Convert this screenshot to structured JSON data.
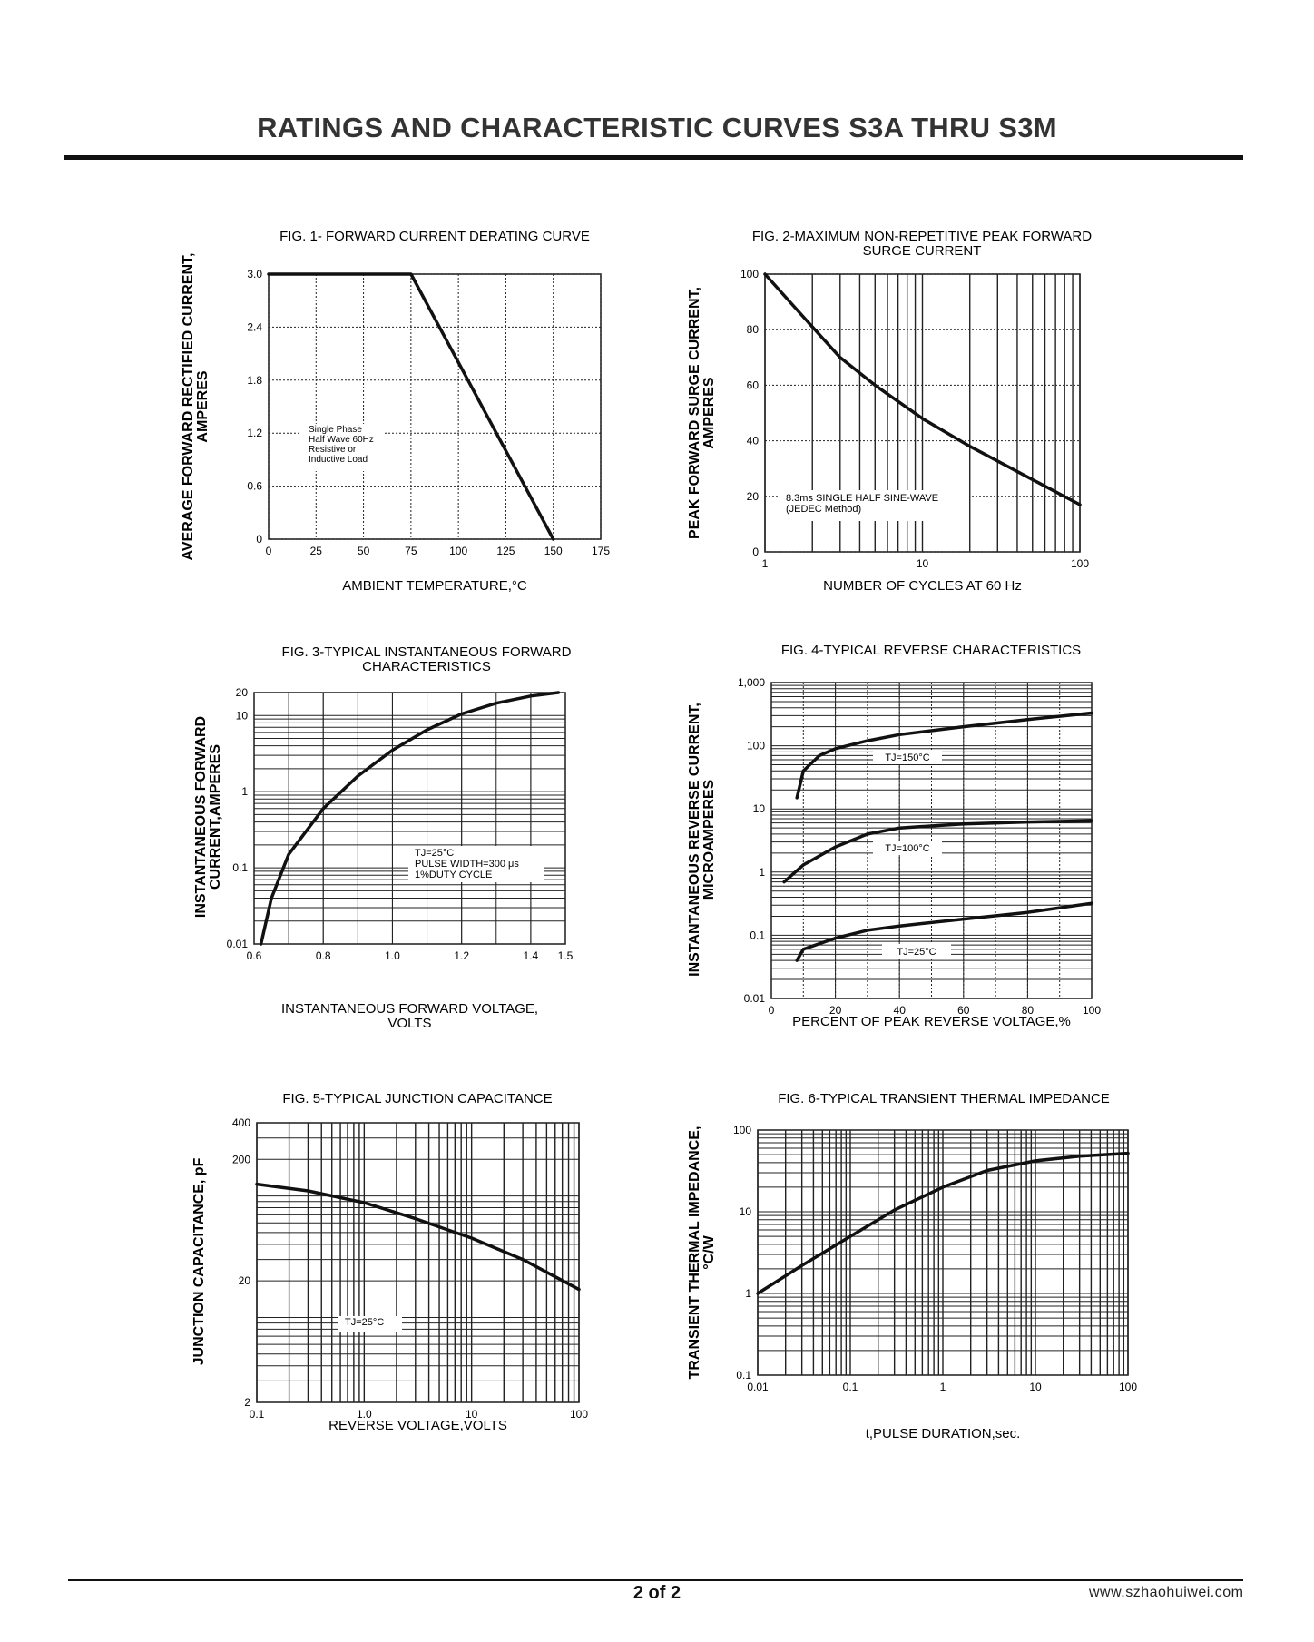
{
  "header": {
    "title": "RATINGS AND CHARACTERISTIC CURVES S3A THRU S3M"
  },
  "footer": {
    "page": "2 of  2",
    "website": "www.szhaohuiwei.com"
  },
  "chart_data": [
    {
      "id": "fig1",
      "type": "line",
      "title": "FIG. 1- FORWARD CURRENT DERATING CURVE",
      "xlabel": "AMBIENT TEMPERATURE,°C",
      "ylabel": "AVERAGE FORWARD RECTIFIED CURRENT,",
      "ylabel2": "AMPERES",
      "xscale": "linear",
      "yscale": "linear",
      "xlim": [
        0,
        175
      ],
      "ylim": [
        0,
        3.0
      ],
      "xticks": [
        0,
        25,
        50,
        75,
        100,
        125,
        150,
        175
      ],
      "xtick_labels": [
        "0",
        "25",
        "50",
        "75",
        "100",
        "125",
        "150",
        "175"
      ],
      "yticks": [
        0,
        0.6,
        1.2,
        1.8,
        2.4,
        3.0
      ],
      "ytick_labels": [
        "0",
        "0.6",
        "1.2",
        "1.8",
        "2.4",
        "3.0"
      ],
      "series": [
        {
          "name": "derating",
          "x": [
            0,
            75,
            150
          ],
          "y": [
            3.0,
            3.0,
            0
          ]
        }
      ],
      "annotation": [
        "Single Phase",
        "Half Wave 60Hz",
        "Resistive or",
        "Inductive Load"
      ]
    },
    {
      "id": "fig2",
      "type": "line",
      "title": "FIG. 2-MAXIMUM NON-REPETITIVE PEAK FORWARD",
      "title2": "SURGE CURRENT",
      "xlabel": "NUMBER OF CYCLES AT 60 Hz",
      "ylabel": "PEAK  FORWARD SURGE CURRENT,",
      "ylabel2": "AMPERES",
      "xscale": "log",
      "yscale": "linear",
      "xlim": [
        1,
        100
      ],
      "ylim": [
        0,
        100
      ],
      "xticks": [
        1,
        10,
        100
      ],
      "xtick_labels": [
        "1",
        "10",
        "100"
      ],
      "yticks": [
        0,
        20,
        40,
        60,
        80,
        100
      ],
      "ytick_labels": [
        "0",
        "20",
        "40",
        "60",
        "80",
        "100"
      ],
      "series": [
        {
          "name": "surge",
          "x": [
            1,
            2,
            3,
            5,
            10,
            20,
            50,
            100
          ],
          "y": [
            100,
            81,
            70,
            60,
            48,
            38,
            26,
            17
          ]
        }
      ],
      "annotation": [
        "8.3ms SINGLE HALF SINE-WAVE",
        "(JEDEC Method)"
      ]
    },
    {
      "id": "fig3",
      "type": "line",
      "title": "FIG. 3-TYPICAL INSTANTANEOUS FORWARD",
      "title2": "CHARACTERISTICS",
      "xlabel": "INSTANTANEOUS FORWARD VOLTAGE,",
      "xlabel2": "VOLTS",
      "ylabel": "INSTANTANEOUS FORWARD",
      "ylabel2": "CURRENT,AMPERES",
      "xscale": "linear",
      "yscale": "log",
      "xlim": [
        0.6,
        1.5
      ],
      "ylim": [
        0.01,
        20
      ],
      "xticks": [
        0.6,
        0.8,
        1.0,
        1.2,
        1.4,
        1.5
      ],
      "xtick_labels": [
        "0.6",
        "0.8",
        "1.0",
        "1.2",
        "1.4",
        "1.5"
      ],
      "yticks": [
        0.01,
        0.1,
        1,
        10,
        20
      ],
      "ytick_labels": [
        "0.01",
        "0.1",
        "1",
        "10",
        "20"
      ],
      "series": [
        {
          "name": "forward",
          "x": [
            0.62,
            0.65,
            0.7,
            0.8,
            0.9,
            1.0,
            1.1,
            1.2,
            1.3,
            1.4,
            1.48
          ],
          "y": [
            0.01,
            0.04,
            0.15,
            0.6,
            1.6,
            3.5,
            6.5,
            10.5,
            14.5,
            18,
            20
          ]
        }
      ],
      "annotation": [
        "TJ=25°C",
        "PULSE WIDTH=300 μs",
        "1%DUTY CYCLE"
      ]
    },
    {
      "id": "fig4",
      "type": "line",
      "title": "FIG. 4-TYPICAL REVERSE CHARACTERISTICS",
      "xlabel": "PERCENT OF PEAK REVERSE VOLTAGE,%",
      "ylabel": "INSTANTANEOUS REVERSE CURRENT,",
      "ylabel2": "MICROAMPERES",
      "xscale": "linear",
      "yscale": "log",
      "xlim": [
        0,
        100
      ],
      "ylim": [
        0.01,
        1000
      ],
      "xticks": [
        0,
        20,
        40,
        60,
        80,
        100
      ],
      "xtick_labels": [
        "0",
        "20",
        "40",
        "60",
        "80",
        "100"
      ],
      "yticks": [
        0.01,
        0.1,
        1,
        10,
        100,
        1000
      ],
      "ytick_labels": [
        "0.01",
        "0.1",
        "1",
        "10",
        "100",
        "1,000"
      ],
      "series": [
        {
          "name": "TJ=150°C",
          "x": [
            8,
            10,
            15,
            20,
            30,
            40,
            60,
            80,
            100
          ],
          "y": [
            15,
            40,
            70,
            90,
            120,
            150,
            200,
            260,
            330
          ]
        },
        {
          "name": "TJ=100°C",
          "x": [
            4,
            10,
            20,
            30,
            40,
            60,
            80,
            100
          ],
          "y": [
            0.7,
            1.3,
            2.5,
            4.0,
            5.0,
            5.8,
            6.2,
            6.5
          ]
        },
        {
          "name": "TJ=25°C",
          "x": [
            8,
            10,
            20,
            30,
            40,
            60,
            80,
            100
          ],
          "y": [
            0.04,
            0.06,
            0.09,
            0.12,
            0.14,
            0.18,
            0.23,
            0.32
          ]
        }
      ],
      "annotation": [
        "TJ=150°C",
        "TJ=100°C",
        "TJ=25°C"
      ]
    },
    {
      "id": "fig5",
      "type": "line",
      "title": "FIG. 5-TYPICAL JUNCTION CAPACITANCE",
      "xlabel": "REVERSE VOLTAGE,VOLTS",
      "ylabel": "JUNCTION CAPACITANCE, pF",
      "xscale": "log",
      "yscale": "log",
      "xlim": [
        0.1,
        100
      ],
      "ylim": [
        2,
        400
      ],
      "xticks": [
        0.1,
        1,
        10,
        100
      ],
      "xtick_labels": [
        "0.1",
        "1.0",
        "10",
        "100"
      ],
      "yticks": [
        2,
        20,
        200,
        400
      ],
      "ytick_labels": [
        "2",
        "20",
        "200",
        "400"
      ],
      "series": [
        {
          "name": "capacitance",
          "x": [
            0.1,
            0.3,
            1,
            3,
            10,
            30,
            100
          ],
          "y": [
            125,
            110,
            88,
            65,
            45,
            30,
            17
          ]
        }
      ],
      "annotation": [
        "TJ=25°C"
      ]
    },
    {
      "id": "fig6",
      "type": "line",
      "title": "FIG. 6-TYPICAL TRANSIENT THERMAL IMPEDANCE",
      "xlabel": "t,PULSE DURATION,sec.",
      "ylabel": "TRANSIENT THERMAL IMPEDANCE,",
      "ylabel2": "°C/W",
      "xscale": "log",
      "yscale": "log",
      "xlim": [
        0.01,
        100
      ],
      "ylim": [
        0.1,
        100
      ],
      "xticks": [
        0.01,
        0.1,
        1,
        10,
        100
      ],
      "xtick_labels": [
        "0.01",
        "0.1",
        "1",
        "10",
        "100"
      ],
      "yticks": [
        0.1,
        1,
        10,
        100
      ],
      "ytick_labels": [
        "0.1",
        "1",
        "10",
        "100"
      ],
      "series": [
        {
          "name": "impedance",
          "x": [
            0.01,
            0.03,
            0.1,
            0.3,
            1,
            3,
            10,
            30,
            100
          ],
          "y": [
            1.0,
            2.2,
            5.0,
            10.5,
            20,
            32,
            42,
            48,
            52
          ]
        }
      ]
    }
  ]
}
